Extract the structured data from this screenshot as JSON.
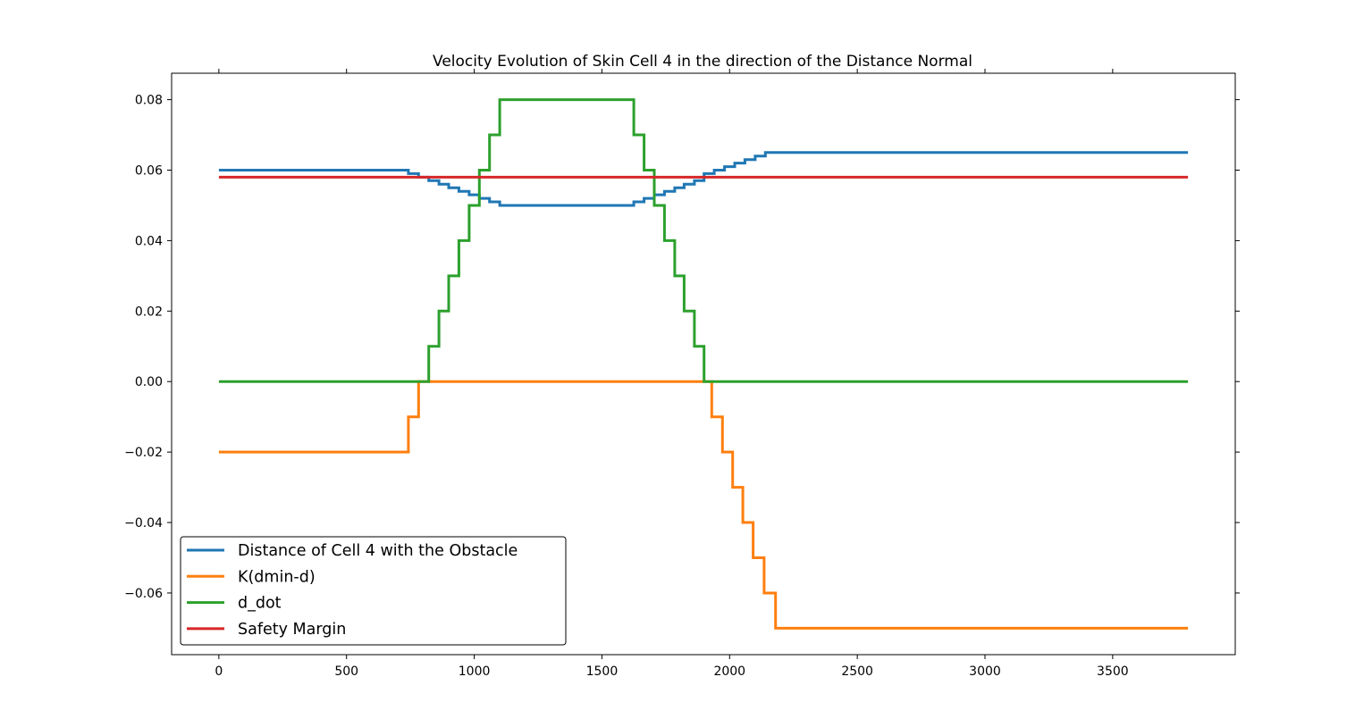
{
  "chart_data": {
    "type": "line",
    "title": "Velocity Evolution of Skin Cell 4 in the direction of the Distance Normal",
    "xlabel": "",
    "ylabel": "",
    "xlim": [
      -185,
      3980
    ],
    "ylim": [
      -0.0775,
      0.0875
    ],
    "x_ticks": [
      0,
      500,
      1000,
      1500,
      2000,
      2500,
      3000,
      3500
    ],
    "x_tick_labels": [
      "0",
      "500",
      "1000",
      "1500",
      "2000",
      "2500",
      "3000",
      "3500"
    ],
    "y_ticks": [
      -0.06,
      -0.04,
      -0.02,
      0.0,
      0.02,
      0.04,
      0.06,
      0.08
    ],
    "y_tick_labels": [
      "−0.06",
      "−0.04",
      "−0.02",
      "0.00",
      "0.02",
      "0.04",
      "0.06",
      "0.08"
    ],
    "grid": false,
    "legend_position": "lower-left",
    "step": true,
    "series": [
      {
        "name": "Distance of Cell 4 with the Obstacle",
        "color": "#1f77b4",
        "x": [
          0,
          742,
          782,
          822,
          862,
          900,
          940,
          980,
          1020,
          1060,
          1100,
          1625,
          1665,
          1705,
          1745,
          1785,
          1822,
          1862,
          1900,
          1940,
          1980,
          2020,
          2060,
          2100,
          2140,
          2180,
          3795
        ],
        "y": [
          0.06,
          0.059,
          0.058,
          0.057,
          0.056,
          0.055,
          0.054,
          0.053,
          0.052,
          0.051,
          0.05,
          0.051,
          0.052,
          0.053,
          0.054,
          0.055,
          0.056,
          0.057,
          0.059,
          0.06,
          0.061,
          0.062,
          0.063,
          0.064,
          0.065,
          0.065,
          0.065
        ]
      },
      {
        "name": "K(dmin-d)",
        "color": "#ff7f0e",
        "x": [
          0,
          742,
          782,
          1930,
          1972,
          2012,
          2052,
          2092,
          2135,
          2180,
          3795
        ],
        "y": [
          -0.02,
          -0.01,
          0.0,
          -0.01,
          -0.02,
          -0.03,
          -0.04,
          -0.05,
          -0.06,
          -0.07,
          -0.07
        ]
      },
      {
        "name": "d_dot",
        "color": "#2ca02c",
        "x": [
          0,
          822,
          862,
          900,
          940,
          980,
          1020,
          1060,
          1100,
          1625,
          1665,
          1705,
          1745,
          1785,
          1822,
          1862,
          1900,
          3795
        ],
        "y": [
          0.0,
          0.01,
          0.02,
          0.03,
          0.04,
          0.05,
          0.06,
          0.07,
          0.08,
          0.07,
          0.06,
          0.05,
          0.04,
          0.03,
          0.02,
          0.01,
          0.0,
          0.0
        ]
      },
      {
        "name": "Safety Margin",
        "color": "#d62728",
        "x": [
          0,
          3795
        ],
        "y": [
          0.058,
          0.058
        ]
      }
    ]
  }
}
